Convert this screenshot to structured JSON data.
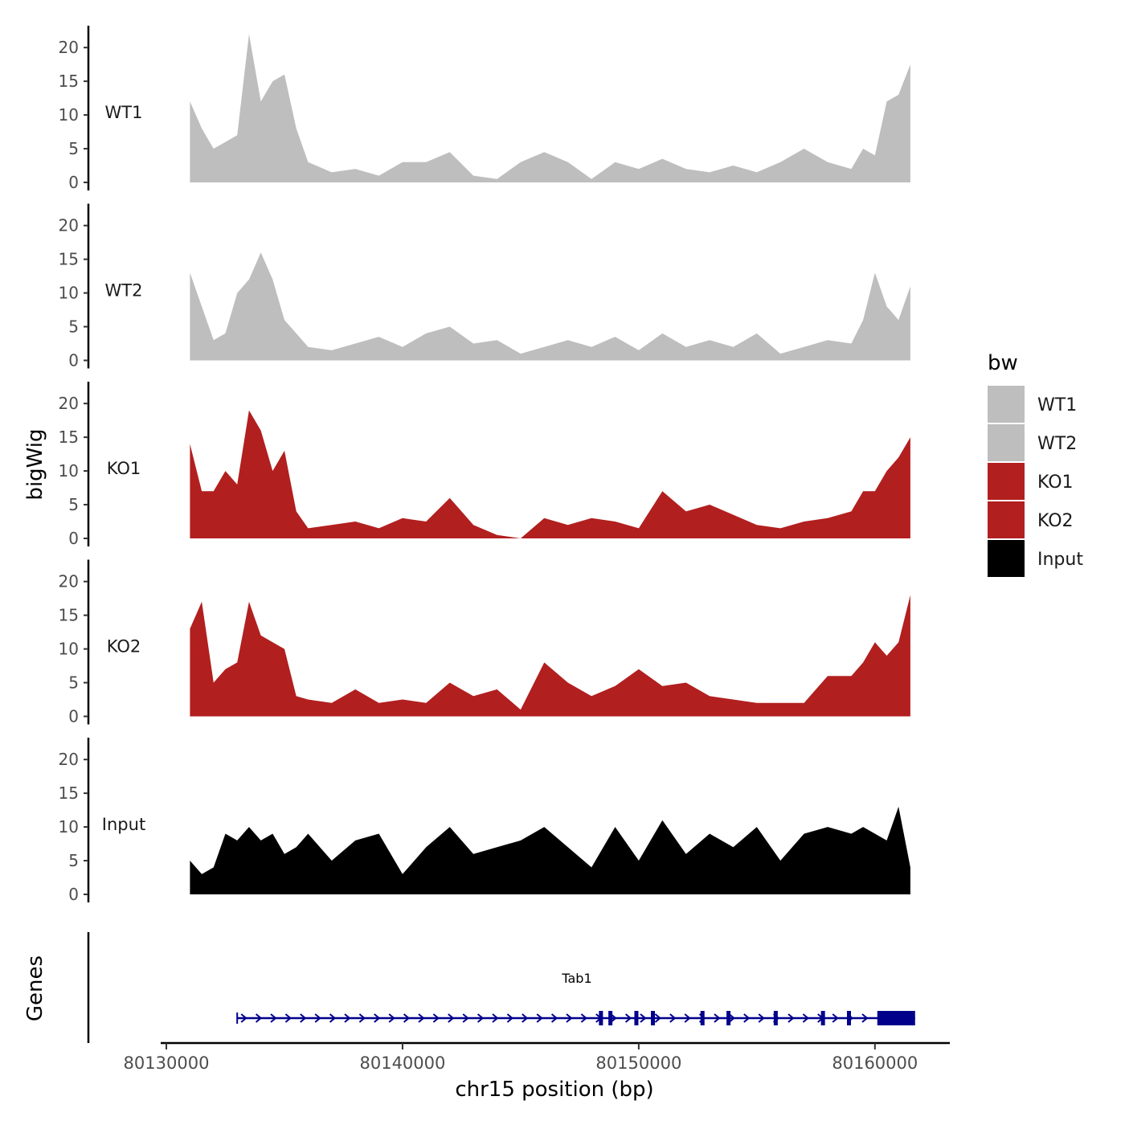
{
  "chart_data": {
    "type": "area",
    "subtype": "genome-browser-coverage-tracks",
    "title": "",
    "ylabel": "bigWig",
    "xlabel": "chr15 position (bp)",
    "x_range": [
      80130000,
      80163000
    ],
    "x_ticks": [
      80130000,
      80140000,
      80150000,
      80160000
    ],
    "x_tick_labels": [
      "80130000",
      "80140000",
      "80150000",
      "80160000"
    ],
    "ylim": [
      0,
      23
    ],
    "y_ticks": [
      0,
      5,
      10,
      15,
      20
    ],
    "y_tick_labels": [
      "0",
      "5",
      "10",
      "15",
      "20"
    ],
    "legend": {
      "title": "bw",
      "placement": "right",
      "entries": [
        {
          "label": "WT1",
          "color": "#bebebe"
        },
        {
          "label": "WT2",
          "color": "#bebebe"
        },
        {
          "label": "KO1",
          "color": "#b21f1f"
        },
        {
          "label": "KO2",
          "color": "#b21f1f"
        },
        {
          "label": "Input",
          "color": "#000000"
        }
      ]
    },
    "x": [
      80131000,
      80131500,
      80132000,
      80132500,
      80133000,
      80133500,
      80134000,
      80134500,
      80135000,
      80135500,
      80136000,
      80137000,
      80138000,
      80139000,
      80140000,
      80141000,
      80142000,
      80143000,
      80144000,
      80145000,
      80146000,
      80147000,
      80148000,
      80149000,
      80150000,
      80151000,
      80152000,
      80153000,
      80154000,
      80155000,
      80156000,
      80157000,
      80158000,
      80159000,
      80159500,
      80160000,
      80160500,
      80161000,
      80161500
    ],
    "series": [
      {
        "name": "WT1",
        "color": "#bebebe",
        "values": [
          12,
          8,
          5,
          6,
          7,
          22,
          12,
          15,
          16,
          8,
          3,
          1.5,
          2,
          1,
          3,
          3,
          4.5,
          1,
          0.5,
          3,
          4.5,
          3,
          0.5,
          3,
          2,
          3.5,
          2,
          1.5,
          2.5,
          1.5,
          3,
          5,
          3,
          2,
          5,
          4,
          12,
          13,
          17.5
        ]
      },
      {
        "name": "WT2",
        "color": "#bebebe",
        "values": [
          13,
          8,
          3,
          4,
          10,
          12,
          16,
          12,
          6,
          4,
          2,
          1.5,
          2.5,
          3.5,
          2,
          4,
          5,
          2.5,
          3,
          1,
          2,
          3,
          2,
          3.5,
          1.5,
          4,
          2,
          3,
          2,
          4,
          1,
          2,
          3,
          2.5,
          6,
          13,
          8,
          6,
          11
        ]
      },
      {
        "name": "KO1",
        "color": "#b21f1f",
        "values": [
          14,
          7,
          7,
          10,
          8,
          19,
          16,
          10,
          13,
          4,
          1.5,
          2,
          2.5,
          1.5,
          3,
          2.5,
          6,
          2,
          0.5,
          0,
          3,
          2,
          3,
          2.5,
          1.5,
          7,
          4,
          5,
          3.5,
          2,
          1.5,
          2.5,
          3,
          4,
          7,
          7,
          10,
          12,
          15
        ]
      },
      {
        "name": "KO2",
        "color": "#b21f1f",
        "values": [
          13,
          17,
          5,
          7,
          8,
          17,
          12,
          11,
          10,
          3,
          2.5,
          2,
          4,
          2,
          2.5,
          2,
          5,
          3,
          4,
          1,
          8,
          5,
          3,
          4.5,
          7,
          4.5,
          5,
          3,
          2.5,
          2,
          2,
          2,
          6,
          6,
          8,
          11,
          9,
          11,
          18
        ]
      },
      {
        "name": "Input",
        "color": "#000000",
        "values": [
          5,
          3,
          4,
          9,
          8,
          10,
          8,
          9,
          6,
          7,
          9,
          5,
          8,
          9,
          3,
          7,
          10,
          6,
          7,
          8,
          10,
          7,
          4,
          10,
          5,
          11,
          6,
          9,
          7,
          10,
          5,
          9,
          10,
          9,
          10,
          9,
          8,
          13,
          4
        ]
      }
    ],
    "gene_track": {
      "label": "Genes",
      "gene": "Tab1",
      "strand": "+",
      "start": 80133000,
      "end": 80161700,
      "thin_exons": [
        80148400,
        80148800,
        80149900,
        80150600,
        80152700,
        80153800,
        80155800,
        80157800,
        80158900
      ],
      "thick_block": [
        80160100,
        80161700
      ],
      "color": "#00008b"
    }
  }
}
